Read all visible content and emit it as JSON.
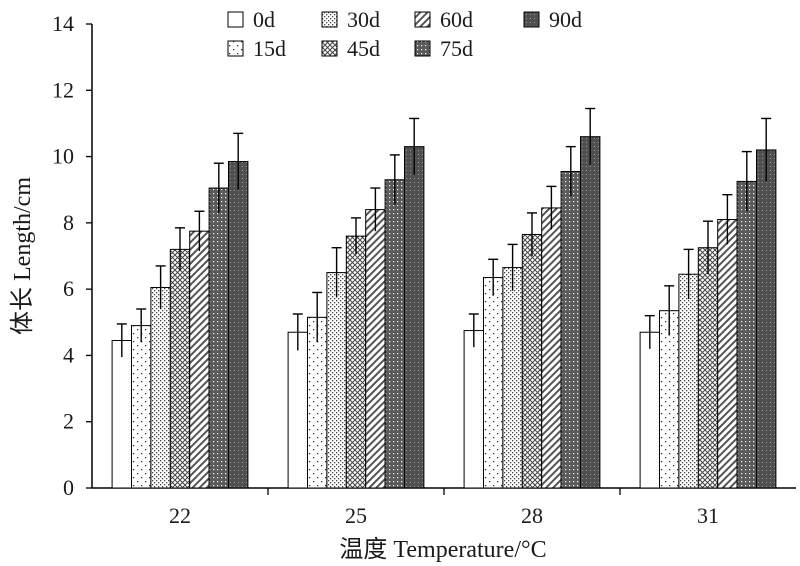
{
  "chart_data": {
    "type": "bar",
    "title": "",
    "xlabel": "温度 Temperature/°C",
    "ylabel": "体长 Length/cm",
    "ylim": [
      0,
      14
    ],
    "yticks": [
      0,
      2,
      4,
      6,
      8,
      10,
      12,
      14
    ],
    "grid": false,
    "legend_position": "top",
    "categories": [
      "22",
      "25",
      "28",
      "31"
    ],
    "series": [
      {
        "name": "0d",
        "values": [
          4.45,
          4.7,
          4.75,
          4.7
        ],
        "errors": [
          0.5,
          0.55,
          0.5,
          0.5
        ],
        "pattern": "blank"
      },
      {
        "name": "15d",
        "values": [
          4.9,
          5.15,
          6.35,
          5.35
        ],
        "errors": [
          0.5,
          0.75,
          0.55,
          0.75
        ],
        "pattern": "sparse-dots"
      },
      {
        "name": "30d",
        "values": [
          6.05,
          6.5,
          6.65,
          6.45
        ],
        "errors": [
          0.65,
          0.75,
          0.7,
          0.75
        ],
        "pattern": "fine-dots"
      },
      {
        "name": "45d",
        "values": [
          7.2,
          7.6,
          7.65,
          7.25
        ],
        "errors": [
          0.65,
          0.55,
          0.65,
          0.8
        ],
        "pattern": "crosshatch"
      },
      {
        "name": "60d",
        "values": [
          7.75,
          8.4,
          8.45,
          8.1
        ],
        "errors": [
          0.6,
          0.65,
          0.65,
          0.75
        ],
        "pattern": "diagonal"
      },
      {
        "name": "75d",
        "values": [
          9.05,
          9.3,
          9.55,
          9.25
        ],
        "errors": [
          0.75,
          0.75,
          0.75,
          0.9
        ],
        "pattern": "dark-dots"
      },
      {
        "name": "90d",
        "values": [
          9.85,
          10.3,
          10.6,
          10.2
        ],
        "errors": [
          0.85,
          0.85,
          0.85,
          0.95
        ],
        "pattern": "dark"
      }
    ]
  }
}
